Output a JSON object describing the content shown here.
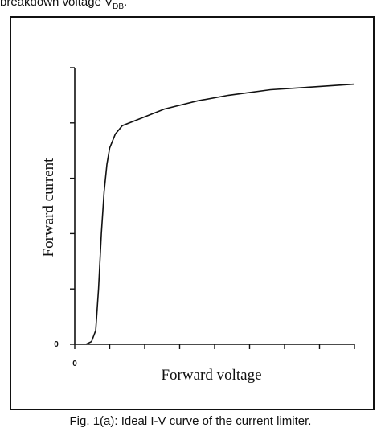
{
  "header_fragment": {
    "text": "breakdown voltage V",
    "sub": "DB",
    "suffix": "."
  },
  "caption": "Fig. 1(a): Ideal I-V curve of the current limiter.",
  "chart_data": {
    "type": "line",
    "title": "",
    "xlabel": "Forward voltage",
    "ylabel": "Forward current",
    "x_tick_labels": [
      "0"
    ],
    "y_tick_labels": [
      "0"
    ],
    "xlim": [
      0,
      1
    ],
    "ylim": [
      0,
      1
    ],
    "grid": false,
    "x_ticks": [
      0,
      0.125,
      0.25,
      0.375,
      0.5,
      0.625,
      0.75,
      0.875,
      1
    ],
    "y_ticks": [
      0,
      0.2,
      0.4,
      0.6,
      0.8,
      1
    ],
    "series": [
      {
        "name": "",
        "x": [
          0.04,
          0.06,
          0.075,
          0.085,
          0.095,
          0.105,
          0.115,
          0.125,
          0.145,
          0.17,
          0.22,
          0.32,
          0.44,
          0.55,
          0.7,
          0.85,
          1.0
        ],
        "y": [
          0.0,
          0.01,
          0.05,
          0.2,
          0.4,
          0.55,
          0.65,
          0.71,
          0.76,
          0.79,
          0.81,
          0.85,
          0.88,
          0.9,
          0.92,
          0.93,
          0.94
        ]
      }
    ]
  }
}
